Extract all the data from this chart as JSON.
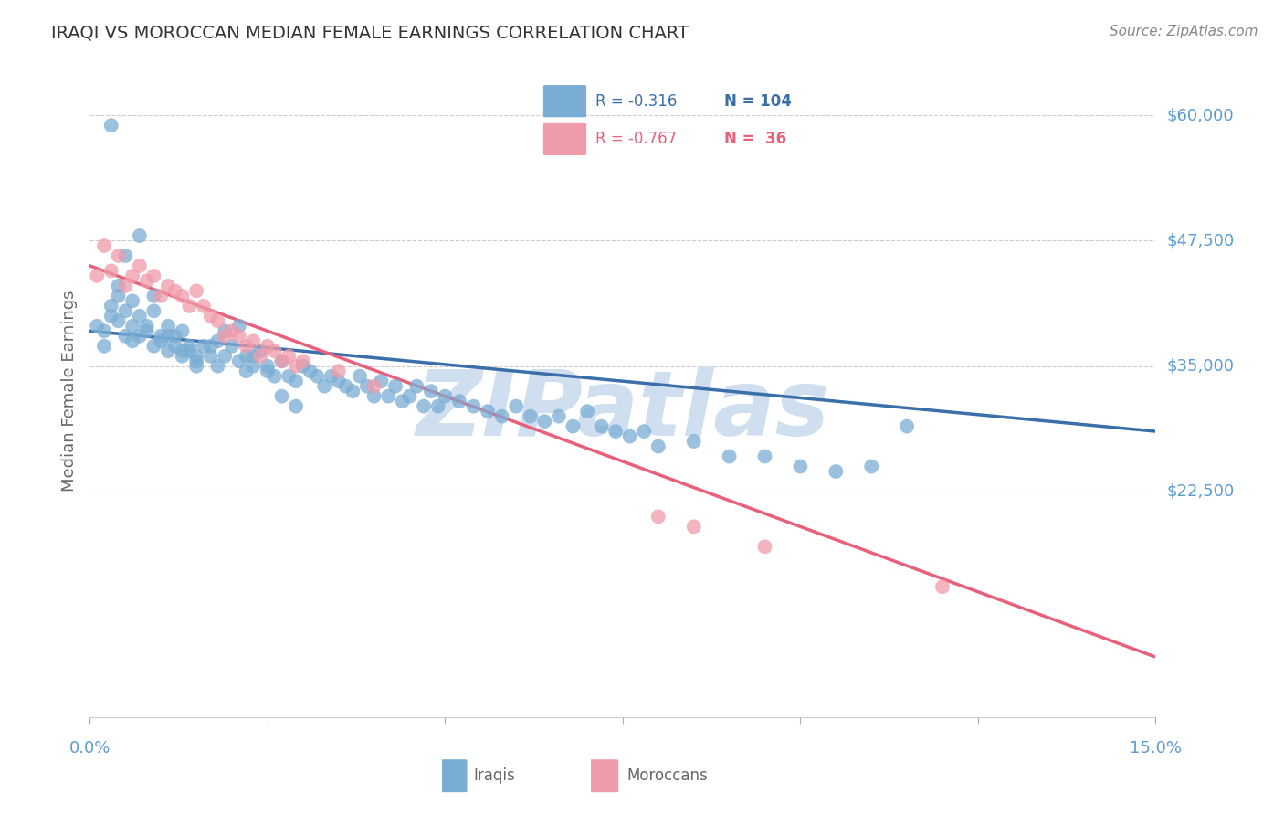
{
  "title": "IRAQI VS MOROCCAN MEDIAN FEMALE EARNINGS CORRELATION CHART",
  "source": "Source: ZipAtlas.com",
  "ylabel": "Median Female Earnings",
  "ylim": [
    0,
    65000
  ],
  "xlim": [
    0.0,
    0.15
  ],
  "iraqi_R": "-0.316",
  "iraqi_N": "104",
  "moroccan_R": "-0.767",
  "moroccan_N": "36",
  "iraqi_color": "#7aadd4",
  "moroccan_color": "#f09baa",
  "iraqi_line_color": "#3a6faa",
  "moroccan_line_color": "#e8607a",
  "title_color": "#333333",
  "axis_label_color": "#666666",
  "ytick_color": "#5b9bd5",
  "xtick_color": "#5b9bd5",
  "grid_color": "#cccccc",
  "background_color": "#ffffff",
  "watermark": "ZIPatlas",
  "watermark_color": "#d0dff0",
  "ytick_positions": [
    60000,
    47500,
    35000,
    22500
  ],
  "ytick_labels": [
    "$60,000",
    "$47,500",
    "$35,000",
    "$22,500"
  ],
  "iraqi_x": [
    0.001,
    0.002,
    0.002,
    0.003,
    0.003,
    0.004,
    0.004,
    0.004,
    0.005,
    0.005,
    0.006,
    0.006,
    0.006,
    0.007,
    0.007,
    0.008,
    0.008,
    0.009,
    0.009,
    0.01,
    0.01,
    0.011,
    0.011,
    0.012,
    0.012,
    0.013,
    0.013,
    0.014,
    0.014,
    0.015,
    0.015,
    0.016,
    0.017,
    0.018,
    0.018,
    0.019,
    0.02,
    0.021,
    0.022,
    0.022,
    0.023,
    0.024,
    0.025,
    0.026,
    0.027,
    0.028,
    0.029,
    0.03,
    0.031,
    0.032,
    0.033,
    0.034,
    0.035,
    0.036,
    0.037,
    0.038,
    0.039,
    0.04,
    0.041,
    0.042,
    0.043,
    0.044,
    0.045,
    0.046,
    0.047,
    0.048,
    0.049,
    0.05,
    0.052,
    0.054,
    0.056,
    0.058,
    0.06,
    0.062,
    0.064,
    0.066,
    0.068,
    0.07,
    0.072,
    0.074,
    0.076,
    0.078,
    0.08,
    0.085,
    0.09,
    0.095,
    0.1,
    0.105,
    0.11,
    0.115,
    0.003,
    0.005,
    0.007,
    0.009,
    0.011,
    0.013,
    0.015,
    0.017,
    0.019,
    0.021,
    0.023,
    0.025,
    0.027,
    0.029
  ],
  "iraqi_y": [
    39000,
    38500,
    37000,
    40000,
    41000,
    39500,
    42000,
    43000,
    40500,
    38000,
    41500,
    39000,
    37500,
    38000,
    40000,
    39000,
    38500,
    37000,
    40500,
    38000,
    37500,
    39000,
    36500,
    38000,
    37000,
    36000,
    38500,
    37000,
    36500,
    36000,
    35500,
    37000,
    36000,
    37500,
    35000,
    36000,
    37000,
    35500,
    36000,
    34500,
    35000,
    36500,
    35000,
    34000,
    35500,
    34000,
    33500,
    35000,
    34500,
    34000,
    33000,
    34000,
    33500,
    33000,
    32500,
    34000,
    33000,
    32000,
    33500,
    32000,
    33000,
    31500,
    32000,
    33000,
    31000,
    32500,
    31000,
    32000,
    31500,
    31000,
    30500,
    30000,
    31000,
    30000,
    29500,
    30000,
    29000,
    30500,
    29000,
    28500,
    28000,
    28500,
    27000,
    27500,
    26000,
    26000,
    25000,
    24500,
    25000,
    29000,
    59000,
    46000,
    48000,
    42000,
    38000,
    36500,
    35000,
    37000,
    38500,
    39000,
    36000,
    34500,
    32000,
    31000
  ],
  "moroccan_x": [
    0.001,
    0.002,
    0.003,
    0.004,
    0.005,
    0.006,
    0.007,
    0.008,
    0.009,
    0.01,
    0.011,
    0.012,
    0.013,
    0.014,
    0.015,
    0.016,
    0.017,
    0.018,
    0.019,
    0.02,
    0.021,
    0.022,
    0.023,
    0.024,
    0.025,
    0.026,
    0.027,
    0.028,
    0.029,
    0.03,
    0.035,
    0.04,
    0.08,
    0.085,
    0.095,
    0.12
  ],
  "moroccan_y": [
    44000,
    47000,
    44500,
    46000,
    43000,
    44000,
    45000,
    43500,
    44000,
    42000,
    43000,
    42500,
    42000,
    41000,
    42500,
    41000,
    40000,
    39500,
    38000,
    38500,
    38000,
    37000,
    37500,
    36000,
    37000,
    36500,
    35500,
    36000,
    35000,
    35500,
    34500,
    33000,
    20000,
    19000,
    17000,
    13000
  ],
  "iraqi_line_x": [
    0.0,
    0.15
  ],
  "iraqi_line_y": [
    38500,
    28500
  ],
  "moroccan_line_x": [
    0.0,
    0.15
  ],
  "moroccan_line_y": [
    45000,
    6000
  ]
}
